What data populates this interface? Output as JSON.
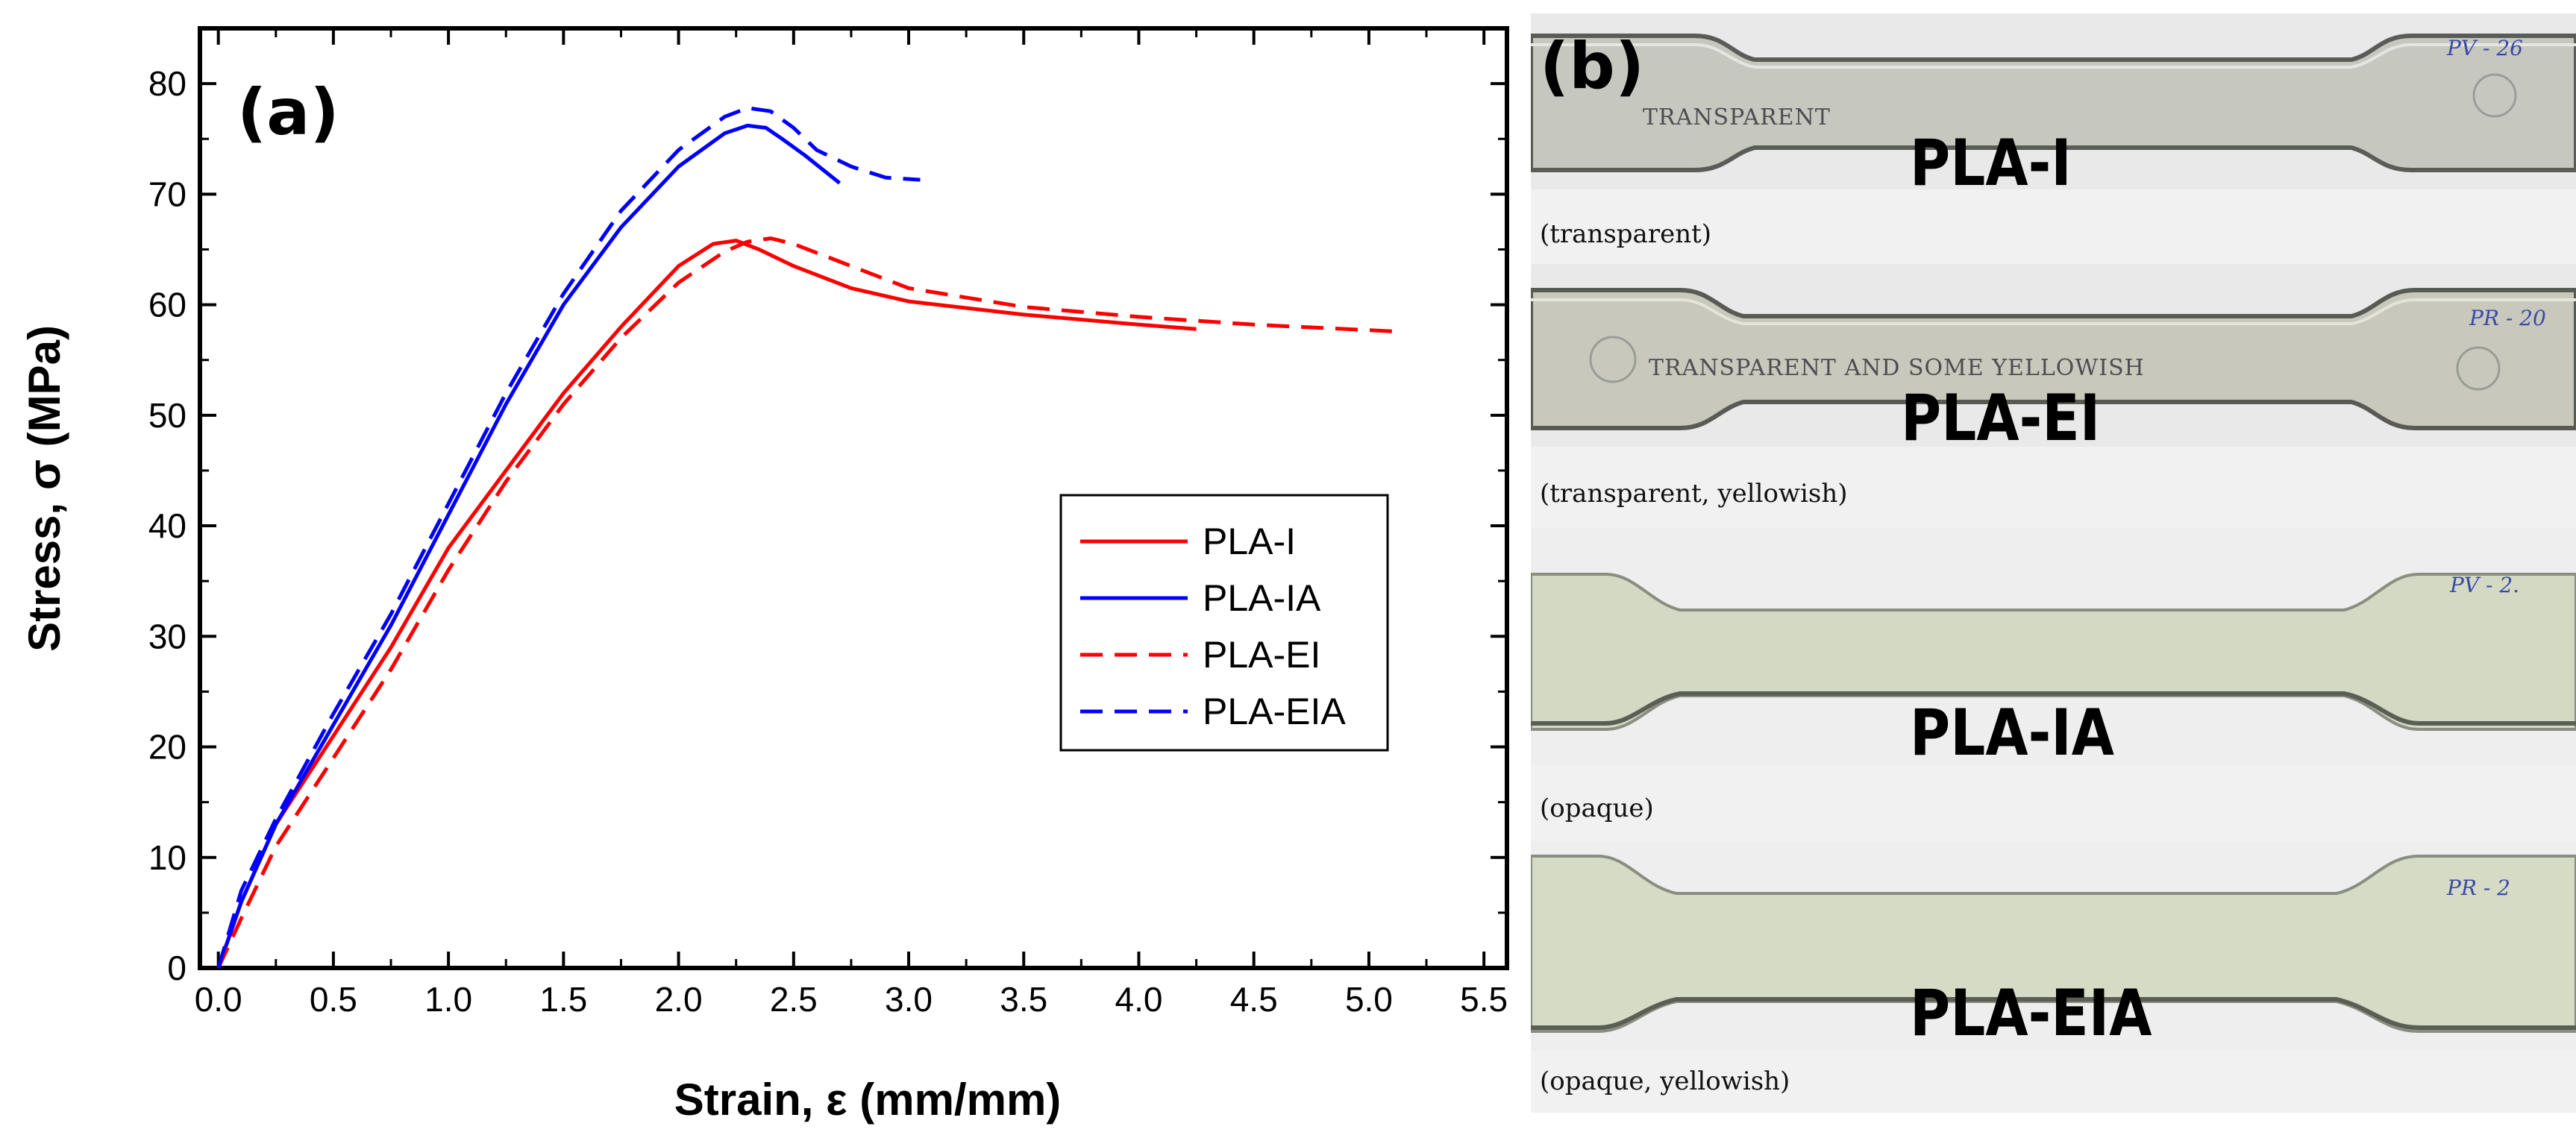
{
  "chart_data": {
    "type": "line",
    "panel_label": "(a)",
    "xlabel": "Strain, ε (mm/mm)",
    "ylabel": "Stress, σ (MPa)",
    "xlim": [
      -0.08,
      5.6
    ],
    "ylim": [
      0,
      85
    ],
    "xticks": [
      0.0,
      0.5,
      1.0,
      1.5,
      2.0,
      2.5,
      3.0,
      3.5,
      4.0,
      4.5,
      5.0,
      5.5
    ],
    "yticks": [
      0,
      10,
      20,
      30,
      40,
      50,
      60,
      70,
      80
    ],
    "xtick_labels": [
      "0.0",
      "0.5",
      "1.0",
      "1.5",
      "2.0",
      "2.5",
      "3.0",
      "3.5",
      "4.0",
      "4.5",
      "5.0",
      "5.5"
    ],
    "ytick_labels": [
      "0",
      "10",
      "20",
      "30",
      "40",
      "50",
      "60",
      "70",
      "80"
    ],
    "grid": false,
    "legend_position": "center-right",
    "series": [
      {
        "name": "PLA-I",
        "color": "#ff0000",
        "dash": "solid",
        "x": [
          0.0,
          0.1,
          0.25,
          0.5,
          0.75,
          1.0,
          1.25,
          1.5,
          1.75,
          2.0,
          2.15,
          2.25,
          2.35,
          2.5,
          2.75,
          3.0,
          3.5,
          4.0,
          4.25
        ],
        "y": [
          0,
          6,
          13,
          21,
          29,
          38,
          45,
          52,
          58,
          63.5,
          65.5,
          65.8,
          65,
          63.5,
          61.5,
          60.3,
          59.1,
          58.2,
          57.8
        ]
      },
      {
        "name": "PLA-IA",
        "color": "#0000ff",
        "dash": "solid",
        "x": [
          0.0,
          0.1,
          0.25,
          0.5,
          0.75,
          1.0,
          1.25,
          1.5,
          1.75,
          2.0,
          2.2,
          2.3,
          2.38,
          2.45,
          2.55,
          2.7
        ],
        "y": [
          0,
          6,
          13,
          22,
          31,
          41,
          51,
          60,
          67,
          72.5,
          75.5,
          76.2,
          76,
          75,
          73.5,
          71
        ]
      },
      {
        "name": "PLA-EI",
        "color": "#ff0000",
        "dash": "dashed",
        "x": [
          0.0,
          0.1,
          0.25,
          0.5,
          0.75,
          1.0,
          1.25,
          1.5,
          1.75,
          2.0,
          2.2,
          2.3,
          2.4,
          2.5,
          2.75,
          3.0,
          3.5,
          4.0,
          4.5,
          5.1
        ],
        "y": [
          0,
          4.5,
          11,
          19,
          27,
          36,
          44,
          51,
          57,
          62,
          64.8,
          65.7,
          66,
          65.5,
          63.5,
          61.5,
          59.8,
          58.9,
          58.2,
          57.6
        ]
      },
      {
        "name": "PLA-EIA",
        "color": "#0000ff",
        "dash": "dashed",
        "x": [
          0.0,
          0.1,
          0.25,
          0.5,
          0.75,
          1.0,
          1.25,
          1.5,
          1.75,
          2.0,
          2.2,
          2.3,
          2.4,
          2.5,
          2.6,
          2.75,
          2.9,
          3.05
        ],
        "y": [
          0,
          7,
          13.5,
          23,
          32,
          42,
          52,
          61,
          68.5,
          74,
          77,
          77.8,
          77.5,
          76,
          74,
          72.5,
          71.5,
          71.3
        ]
      }
    ]
  },
  "panel_b": {
    "panel_label": "(b)",
    "specimens": [
      {
        "label": "PLA-I",
        "caption": "(transparent)",
        "surface_text": "TRANSPARENT",
        "mark": "PV - 26"
      },
      {
        "label": "PLA-EI",
        "caption": "(transparent, yellowish)",
        "surface_text": "TRANSPARENT AND SOME YELLOWISH",
        "mark": "PR - 20"
      },
      {
        "label": "PLA-IA",
        "caption": "(opaque)",
        "surface_text": "",
        "mark": "PV - 2."
      },
      {
        "label": "PLA-EIA",
        "caption": "(opaque, yellowish)",
        "surface_text": "",
        "mark": "PR - 2"
      }
    ]
  },
  "colors": {
    "red": "#ff0000",
    "blue": "#0000ff",
    "frame": "#000000",
    "transparent_bar": "#cfd1c9",
    "opaque_bar": "#d6dcc6"
  }
}
